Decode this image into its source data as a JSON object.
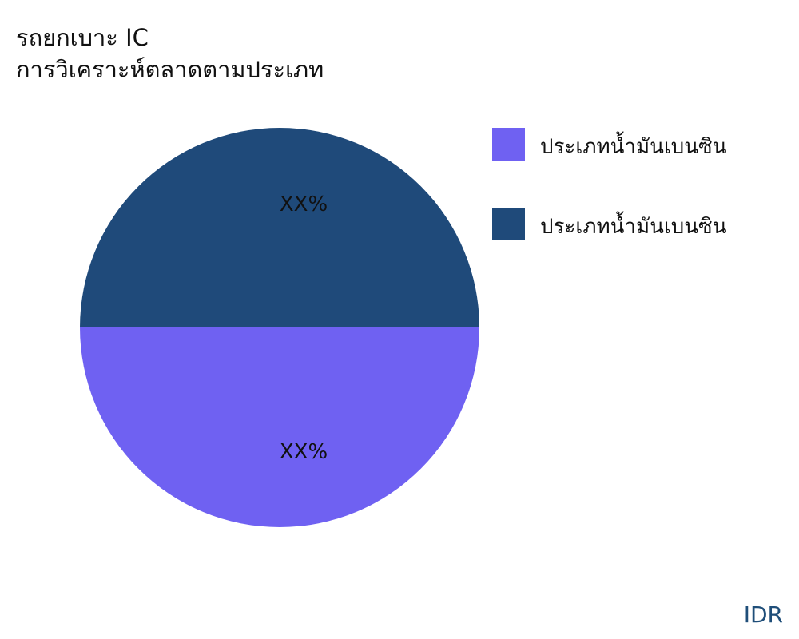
{
  "chart_data": {
    "type": "pie",
    "title": "รถยกเบาะ IC",
    "subtitle": "การวิเคราะห์ตลาดตามประเภท",
    "slices": [
      {
        "label": "ประเภทน้ำมันเบนซิน",
        "value": 50,
        "data_label": "XX%",
        "color": "#6f61f2"
      },
      {
        "label": "ประเภทน้ำมันเบนซิน",
        "value": 50,
        "data_label": "XX%",
        "color": "#1f4a7a"
      }
    ],
    "legend_placement": "top-right"
  },
  "brand": "IDR"
}
